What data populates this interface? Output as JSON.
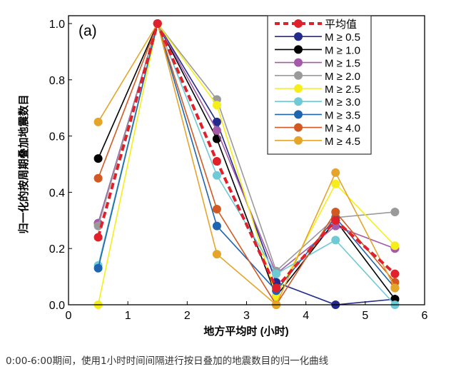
{
  "chart_data": {
    "type": "line",
    "panel_label": "(a)",
    "xlabel": "地方平均时 (小时)",
    "ylabel": "归一化的按周期叠加地震数目",
    "xlim": [
      0,
      6
    ],
    "ylim": [
      0,
      1.0
    ],
    "xticks": [
      "0",
      "1",
      "2",
      "3",
      "4",
      "5",
      "6"
    ],
    "yticks": [
      "0.0",
      "0.2",
      "0.4",
      "0.6",
      "0.8",
      "1.0"
    ],
    "legend_position": "top-right",
    "x": [
      0.5,
      1.5,
      2.5,
      3.5,
      4.5,
      5.5
    ],
    "series": [
      {
        "name": "平均值",
        "color": "#e0202a",
        "dashed": true,
        "values": [
          0.24,
          1.0,
          0.51,
          0.06,
          0.3,
          0.11
        ]
      },
      {
        "name": "M ≥ 0.5",
        "color": "#232a8c",
        "values": [
          0.29,
          1.0,
          0.65,
          0.08,
          0.0,
          0.02
        ]
      },
      {
        "name": "M ≥ 1.0",
        "color": "#000000",
        "values": [
          0.52,
          1.0,
          0.59,
          0.03,
          0.3,
          0.02
        ]
      },
      {
        "name": "M ≥ 1.5",
        "color": "#a45aa8",
        "values": [
          0.29,
          1.0,
          0.62,
          0.11,
          0.28,
          0.2
        ]
      },
      {
        "name": "M ≥ 2.0",
        "color": "#9a9a9a",
        "values": [
          0.28,
          1.0,
          0.73,
          0.12,
          0.31,
          0.33
        ]
      },
      {
        "name": "M ≥ 2.5",
        "color": "#f5ee1a",
        "values": [
          0.0,
          1.0,
          0.71,
          0.03,
          0.43,
          0.21
        ]
      },
      {
        "name": "M ≥ 3.0",
        "color": "#6ecad4",
        "values": [
          0.14,
          1.0,
          0.46,
          0.11,
          0.23,
          0.0
        ]
      },
      {
        "name": "M ≥ 3.5",
        "color": "#1f64b0",
        "values": [
          0.13,
          1.0,
          0.28,
          0.05,
          0.31,
          0.06
        ]
      },
      {
        "name": "M ≥ 4.0",
        "color": "#d25a22",
        "values": [
          0.45,
          1.0,
          0.34,
          0.0,
          0.33,
          0.08
        ]
      },
      {
        "name": "M ≥ 4.5",
        "color": "#e5a52a",
        "values": [
          0.65,
          1.0,
          0.18,
          0.0,
          0.47,
          0.06
        ]
      }
    ]
  },
  "caption": "0:00-6:00期间，使用1小时时间间隔进行按日叠加的地震数目的归一化曲线"
}
